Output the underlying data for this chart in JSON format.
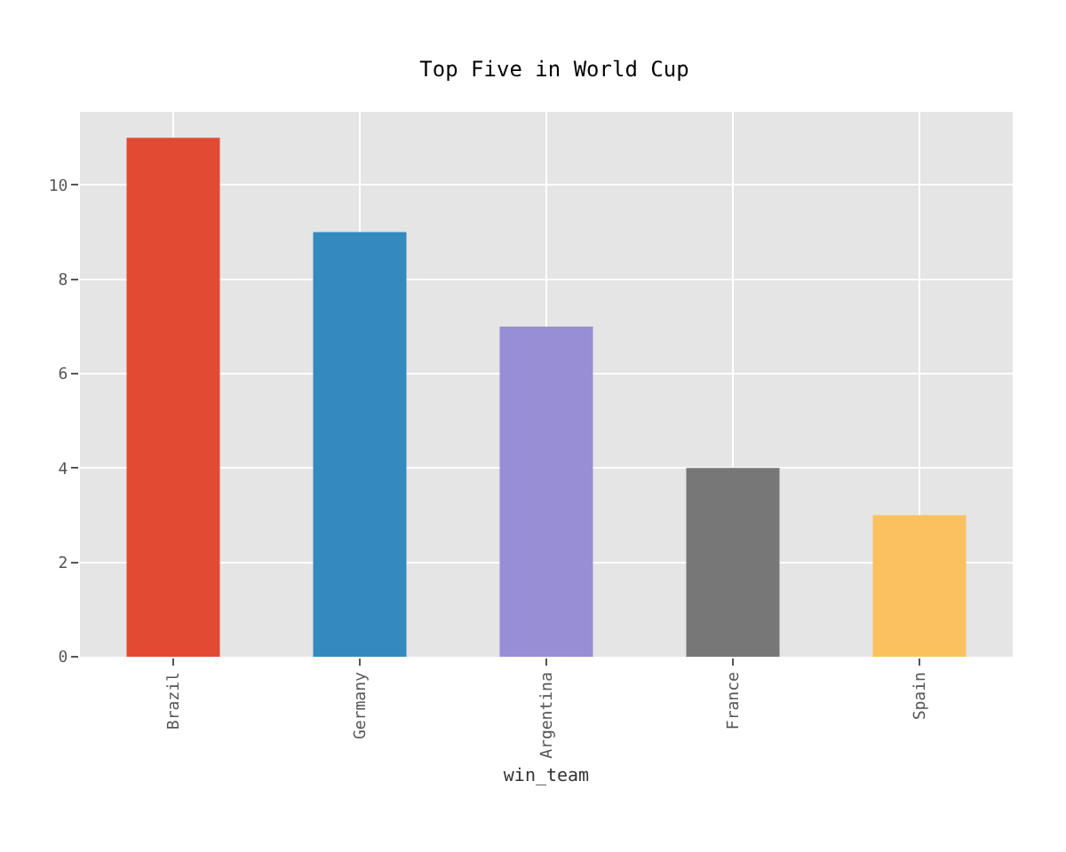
{
  "chart_data": {
    "type": "bar",
    "title": "Top Five in World Cup",
    "xlabel": "win_team",
    "categories": [
      "Brazil",
      "Germany",
      "Argentina",
      "France",
      "Spain"
    ],
    "values": [
      11,
      9,
      7,
      4,
      3
    ],
    "colors": [
      "#e24a33",
      "#348abd",
      "#988ed5",
      "#777777",
      "#fbc15e"
    ],
    "ylim": [
      0,
      11.55
    ],
    "yticks": [
      0,
      2,
      4,
      6,
      8,
      10
    ],
    "grid": true
  }
}
